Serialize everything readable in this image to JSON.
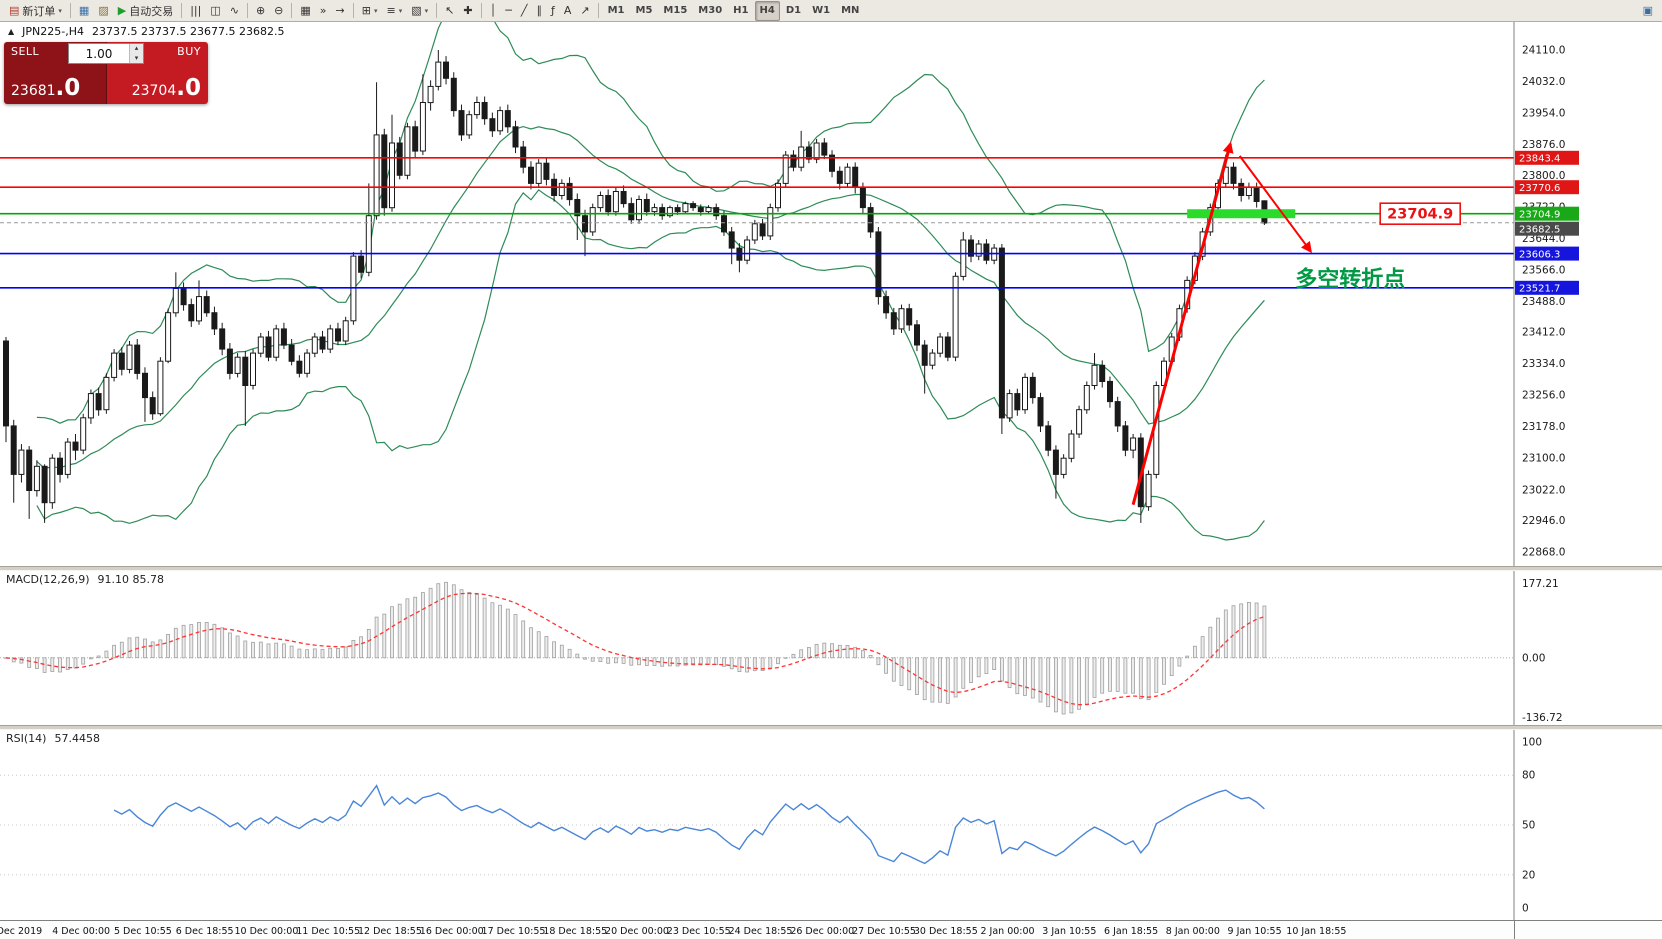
{
  "colors": {
    "sell_bg": "#8e1318",
    "buy_bg": "#c41a22",
    "resistance_red": "#ff0000",
    "support_blue": "#0000ff",
    "pivot_green": "#00a800",
    "highlight_green": "#2bdb2b",
    "annotation_red": "#ff0000",
    "bollinger_green": "#2e8b57",
    "rsi_blue": "#4a86d8",
    "macd_signal_red": "#ff3333"
  },
  "toolbar": {
    "items": [
      {
        "name": "new-order-button",
        "icon": "▤",
        "icon_color": "#b23b2e",
        "label": "新订单",
        "caret": "▾"
      },
      {
        "sep": true
      },
      {
        "name": "chart-window-icon",
        "icon": "▦",
        "icon_color": "#3a6ea5"
      },
      {
        "name": "profiles-icon",
        "icon": "▨",
        "icon_color": "#8a6d3b"
      },
      {
        "name": "autotrading-button",
        "icon": "▶",
        "icon_color": "#1f9d2f",
        "label": "自动交易"
      },
      {
        "sep": true
      },
      {
        "name": "bar-chart-icon",
        "icon": "|||"
      },
      {
        "name": "candlestick-chart-icon",
        "icon": "◫"
      },
      {
        "name": "line-chart-icon",
        "icon": "∿"
      },
      {
        "sep": true
      },
      {
        "name": "zoom-in-icon",
        "icon": "⊕"
      },
      {
        "name": "zoom-out-icon",
        "icon": "⊖"
      },
      {
        "sep": true
      },
      {
        "name": "tile-windows-icon",
        "icon": "▦"
      },
      {
        "name": "auto-scroll-icon",
        "icon": "»"
      },
      {
        "name": "chart-shift-icon",
        "icon": "→"
      },
      {
        "sep": true
      },
      {
        "name": "indicators-icon",
        "icon": "⊞",
        "caret": "▾"
      },
      {
        "name": "periods-icon",
        "icon": "≡",
        "caret": "▾"
      },
      {
        "name": "templates-icon",
        "icon": "▧",
        "caret": "▾"
      },
      {
        "sep": true
      },
      {
        "name": "cursor-icon",
        "icon": "↖"
      },
      {
        "name": "crosshair-icon",
        "icon": "✚"
      },
      {
        "sep": true
      },
      {
        "name": "vertical-line-icon",
        "icon": "│"
      },
      {
        "name": "horizontal-line-icon",
        "icon": "─"
      },
      {
        "name": "trendline-icon",
        "icon": "╱"
      },
      {
        "name": "channel-icon",
        "icon": "∥"
      },
      {
        "name": "fibonacci-icon",
        "icon": "ƒ"
      },
      {
        "name": "text-icon",
        "icon": "A"
      },
      {
        "name": "arrow-tool-icon",
        "icon": "↗"
      },
      {
        "sep": true
      }
    ],
    "timeframes": [
      "M1",
      "M5",
      "M15",
      "M30",
      "H1",
      "H4",
      "D1",
      "W1",
      "MN"
    ],
    "active_timeframe": "H4",
    "right_items": [
      {
        "name": "new-chart-icon",
        "icon": "▣",
        "icon_color": "#3a6ea5"
      }
    ]
  },
  "chart_header": {
    "marker": "▲",
    "symbol_period": "JPN225-,H4",
    "ohlc": "23737.5 23737.5 23677.5 23682.5"
  },
  "order_widget": {
    "sell_label": "SELL",
    "buy_label": "BUY",
    "volume": "1.00",
    "volume_up_icon": "▴",
    "volume_down_icon": "▾",
    "sell_price_main": "23681",
    "sell_price_pips": ".0",
    "buy_price_main": "23704",
    "buy_price_pips": ".0"
  },
  "chart_data": {
    "type": "candlestick",
    "symbol": "JPN225-",
    "timeframe": "H4",
    "price_axis": {
      "max": 24110.0,
      "min": 22868.0,
      "labels": [
        "24110.0",
        "24032.0",
        "23954.0",
        "23876.0",
        "23800.0",
        "23722.0",
        "23644.0",
        "23566.0",
        "23488.0",
        "23412.0",
        "23334.0",
        "23256.0",
        "23178.0",
        "23100.0",
        "23022.0",
        "22946.0",
        "22868.0"
      ]
    },
    "time_axis": [
      "Dec 2019",
      "4 Dec 00:00",
      "5 Dec 10:55",
      "6 Dec 18:55",
      "10 Dec 00:00",
      "11 Dec 10:55",
      "12 Dec 18:55",
      "16 Dec 00:00",
      "17 Dec 10:55",
      "18 Dec 18:55",
      "20 Dec 00:00",
      "23 Dec 10:55",
      "24 Dec 18:55",
      "26 Dec 00:00",
      "27 Dec 10:55",
      "30 Dec 18:55",
      "2 Jan 00:00",
      "3 Jan 10:55",
      "6 Jan 18:55",
      "8 Jan 00:00",
      "9 Jan 10:55",
      "10 Jan 18:55"
    ],
    "bollinger": {
      "period": 20,
      "deviation": 2,
      "color": "#2e8b57"
    },
    "hlines": [
      {
        "price": 23843.4,
        "color": "#ff0000",
        "tag": "23843.4",
        "tag_bg": "#e01515"
      },
      {
        "price": 23770.6,
        "color": "#ff0000",
        "tag": "23770.6",
        "tag_bg": "#e01515"
      },
      {
        "price": 23704.9,
        "color": "#00a800",
        "tag": "23704.9",
        "tag_bg": "#18a818"
      },
      {
        "price": 23606.3,
        "color": "#0000ff",
        "tag": "23606.3",
        "tag_bg": "#1515dd"
      },
      {
        "price": 23521.7,
        "color": "#0000ff",
        "tag": "23521.7",
        "tag_bg": "#1515dd"
      }
    ],
    "bid_line": {
      "price": 23682.5,
      "tag": "23682.5",
      "color": "#999999",
      "tag_bg": "#4a4a4a"
    },
    "annotations": {
      "highlight_bar": {
        "price": 23704.9,
        "bar_start": 153,
        "bar_end": 167,
        "color": "#2bdb2b",
        "width": 9
      },
      "arrow_up": {
        "from_bar": 146,
        "from_price": 22985,
        "to_bar": 158.6,
        "to_price": 23878,
        "color": "#ff0000",
        "width": 3
      },
      "arrow_down": {
        "from_bar": 159.8,
        "from_price": 23848,
        "to_bar": 169,
        "to_price": 23612,
        "color": "#ff0000",
        "width": 2
      },
      "price_callout": {
        "text": "23704.9",
        "bar": 178,
        "price": 23704.9,
        "color": "#ee1111"
      },
      "text_label": {
        "text": "多空转折点",
        "bar": 167,
        "price": 23545,
        "color": "#009944"
      }
    },
    "candles": [
      [
        23390,
        23400,
        23140,
        23180
      ],
      [
        23180,
        23195,
        22990,
        23060
      ],
      [
        23060,
        23135,
        23040,
        23120
      ],
      [
        23120,
        23130,
        22950,
        23020
      ],
      [
        23020,
        23095,
        23005,
        23080
      ],
      [
        23080,
        23085,
        22940,
        22990
      ],
      [
        22990,
        23110,
        22975,
        23100
      ],
      [
        23100,
        23115,
        23040,
        23060
      ],
      [
        23060,
        23150,
        23050,
        23140
      ],
      [
        23140,
        23160,
        23095,
        23120
      ],
      [
        23120,
        23210,
        23110,
        23200
      ],
      [
        23200,
        23270,
        23185,
        23260
      ],
      [
        23260,
        23275,
        23205,
        23220
      ],
      [
        23220,
        23310,
        23210,
        23300
      ],
      [
        23300,
        23370,
        23290,
        23360
      ],
      [
        23360,
        23375,
        23305,
        23320
      ],
      [
        23320,
        23390,
        23310,
        23380
      ],
      [
        23380,
        23395,
        23295,
        23310
      ],
      [
        23310,
        23325,
        23190,
        23250
      ],
      [
        23250,
        23265,
        23195,
        23210
      ],
      [
        23210,
        23350,
        23205,
        23340
      ],
      [
        23340,
        23470,
        23335,
        23460
      ],
      [
        23460,
        23560,
        23450,
        23520
      ],
      [
        23520,
        23535,
        23465,
        23480
      ],
      [
        23480,
        23495,
        23425,
        23440
      ],
      [
        23440,
        23540,
        23430,
        23500
      ],
      [
        23500,
        23515,
        23450,
        23460
      ],
      [
        23460,
        23475,
        23405,
        23420
      ],
      [
        23420,
        23435,
        23355,
        23370
      ],
      [
        23370,
        23385,
        23295,
        23310
      ],
      [
        23310,
        23360,
        23300,
        23350
      ],
      [
        23350,
        23365,
        23180,
        23280
      ],
      [
        23280,
        23370,
        23270,
        23360
      ],
      [
        23360,
        23410,
        23350,
        23400
      ],
      [
        23400,
        23415,
        23340,
        23350
      ],
      [
        23350,
        23430,
        23340,
        23420
      ],
      [
        23420,
        23435,
        23370,
        23380
      ],
      [
        23380,
        23395,
        23330,
        23340
      ],
      [
        23340,
        23355,
        23300,
        23310
      ],
      [
        23310,
        23370,
        23300,
        23360
      ],
      [
        23360,
        23410,
        23350,
        23400
      ],
      [
        23400,
        23415,
        23360,
        23370
      ],
      [
        23370,
        23430,
        23360,
        23420
      ],
      [
        23420,
        23435,
        23380,
        23390
      ],
      [
        23390,
        23450,
        23380,
        23440
      ],
      [
        23440,
        23610,
        23430,
        23600
      ],
      [
        23600,
        23615,
        23545,
        23560
      ],
      [
        23560,
        23780,
        23550,
        23700
      ],
      [
        23700,
        24030,
        23690,
        23900
      ],
      [
        23900,
        23915,
        23700,
        23720
      ],
      [
        23720,
        23950,
        23710,
        23880
      ],
      [
        23880,
        23895,
        23790,
        23800
      ],
      [
        23800,
        23930,
        23790,
        23920
      ],
      [
        23920,
        23935,
        23845,
        23860
      ],
      [
        23860,
        24050,
        23850,
        23980
      ],
      [
        23980,
        24035,
        23960,
        24020
      ],
      [
        24020,
        24110,
        24010,
        24080
      ],
      [
        24080,
        24095,
        24025,
        24040
      ],
      [
        24040,
        24055,
        23945,
        23960
      ],
      [
        23960,
        23975,
        23885,
        23900
      ],
      [
        23900,
        23960,
        23890,
        23950
      ],
      [
        23950,
        23995,
        23940,
        23980
      ],
      [
        23980,
        23995,
        23925,
        23940
      ],
      [
        23940,
        23955,
        23895,
        23910
      ],
      [
        23910,
        23970,
        23900,
        23960
      ],
      [
        23960,
        23975,
        23905,
        23920
      ],
      [
        23920,
        23935,
        23855,
        23870
      ],
      [
        23870,
        23885,
        23805,
        23820
      ],
      [
        23820,
        23835,
        23765,
        23780
      ],
      [
        23780,
        23840,
        23770,
        23830
      ],
      [
        23830,
        23845,
        23775,
        23790
      ],
      [
        23790,
        23805,
        23735,
        23750
      ],
      [
        23750,
        23790,
        23740,
        23780
      ],
      [
        23780,
        23795,
        23725,
        23740
      ],
      [
        23740,
        23755,
        23640,
        23700
      ],
      [
        23700,
        23715,
        23600,
        23660
      ],
      [
        23660,
        23730,
        23650,
        23720
      ],
      [
        23720,
        23760,
        23710,
        23750
      ],
      [
        23750,
        23765,
        23700,
        23710
      ],
      [
        23710,
        23770,
        23700,
        23760
      ],
      [
        23760,
        23775,
        23720,
        23730
      ],
      [
        23730,
        23745,
        23680,
        23690
      ],
      [
        23690,
        23750,
        23680,
        23740
      ],
      [
        23740,
        23755,
        23700,
        23710
      ],
      [
        23710,
        23730,
        23700,
        23720
      ],
      [
        23720,
        23730,
        23690,
        23700
      ],
      [
        23700,
        23725,
        23695,
        23720
      ],
      [
        23720,
        23728,
        23702,
        23710
      ],
      [
        23710,
        23735,
        23705,
        23730
      ],
      [
        23730,
        23736,
        23712,
        23720
      ],
      [
        23720,
        23728,
        23700,
        23710
      ],
      [
        23710,
        23726,
        23704,
        23720
      ],
      [
        23720,
        23730,
        23690,
        23700
      ],
      [
        23700,
        23712,
        23650,
        23660
      ],
      [
        23660,
        23672,
        23580,
        23620
      ],
      [
        23620,
        23632,
        23560,
        23590
      ],
      [
        23590,
        23650,
        23580,
        23640
      ],
      [
        23640,
        23690,
        23630,
        23680
      ],
      [
        23680,
        23692,
        23640,
        23650
      ],
      [
        23650,
        23730,
        23640,
        23720
      ],
      [
        23720,
        23790,
        23710,
        23780
      ],
      [
        23780,
        23860,
        23770,
        23850
      ],
      [
        23850,
        23862,
        23810,
        23820
      ],
      [
        23820,
        23910,
        23810,
        23870
      ],
      [
        23870,
        23884,
        23830,
        23840
      ],
      [
        23840,
        23890,
        23830,
        23880
      ],
      [
        23880,
        23892,
        23840,
        23850
      ],
      [
        23850,
        23862,
        23795,
        23810
      ],
      [
        23810,
        23822,
        23765,
        23780
      ],
      [
        23780,
        23830,
        23770,
        23820
      ],
      [
        23820,
        23832,
        23755,
        23770
      ],
      [
        23770,
        23782,
        23705,
        23720
      ],
      [
        23720,
        23732,
        23645,
        23660
      ],
      [
        23660,
        23672,
        23480,
        23500
      ],
      [
        23500,
        23515,
        23445,
        23460
      ],
      [
        23460,
        23472,
        23405,
        23420
      ],
      [
        23420,
        23480,
        23410,
        23470
      ],
      [
        23470,
        23482,
        23415,
        23430
      ],
      [
        23430,
        23442,
        23365,
        23380
      ],
      [
        23380,
        23392,
        23260,
        23330
      ],
      [
        23330,
        23370,
        23320,
        23360
      ],
      [
        23360,
        23410,
        23350,
        23400
      ],
      [
        23400,
        23412,
        23340,
        23350
      ],
      [
        23350,
        23560,
        23340,
        23550
      ],
      [
        23550,
        23660,
        23540,
        23640
      ],
      [
        23640,
        23652,
        23585,
        23600
      ],
      [
        23600,
        23640,
        23590,
        23630
      ],
      [
        23630,
        23642,
        23580,
        23590
      ],
      [
        23590,
        23630,
        23580,
        23620
      ],
      [
        23620,
        23630,
        23160,
        23200
      ],
      [
        23200,
        23270,
        23190,
        23260
      ],
      [
        23260,
        23272,
        23205,
        23220
      ],
      [
        23220,
        23310,
        23210,
        23300
      ],
      [
        23300,
        23312,
        23235,
        23250
      ],
      [
        23250,
        23262,
        23165,
        23180
      ],
      [
        23180,
        23192,
        23105,
        23120
      ],
      [
        23120,
        23132,
        23000,
        23060
      ],
      [
        23060,
        23110,
        23050,
        23100
      ],
      [
        23100,
        23170,
        23090,
        23160
      ],
      [
        23160,
        23230,
        23150,
        23220
      ],
      [
        23220,
        23290,
        23210,
        23280
      ],
      [
        23280,
        23360,
        23270,
        23330
      ],
      [
        23330,
        23342,
        23275,
        23290
      ],
      [
        23290,
        23302,
        23225,
        23240
      ],
      [
        23240,
        23252,
        23165,
        23180
      ],
      [
        23180,
        23192,
        23105,
        23120
      ],
      [
        23120,
        23160,
        23100,
        23150
      ],
      [
        23150,
        23162,
        22940,
        22980
      ],
      [
        22980,
        23070,
        22970,
        23060
      ],
      [
        23060,
        23290,
        23050,
        23280
      ],
      [
        23280,
        23350,
        23270,
        23340
      ],
      [
        23340,
        23410,
        23330,
        23400
      ],
      [
        23400,
        23480,
        23390,
        23470
      ],
      [
        23470,
        23550,
        23460,
        23540
      ],
      [
        23540,
        23610,
        23530,
        23600
      ],
      [
        23600,
        23670,
        23590,
        23660
      ],
      [
        23660,
        23730,
        23650,
        23720
      ],
      [
        23720,
        23790,
        23710,
        23780
      ],
      [
        23780,
        23850,
        23770,
        23820
      ],
      [
        23820,
        23832,
        23765,
        23780
      ],
      [
        23780,
        23792,
        23735,
        23750
      ],
      [
        23750,
        23782,
        23740,
        23770
      ],
      [
        23770,
        23782,
        23720,
        23735
      ],
      [
        23737,
        23738,
        23677,
        23682
      ]
    ],
    "macd": {
      "label": "MACD(12,26,9)",
      "values_text": "91.10 85.78",
      "fast": 12,
      "slow": 26,
      "signal": 9,
      "axis_max": 177.21,
      "axis_min": -136.72,
      "axis_labels": [
        "177.21",
        "0.00",
        "-136.72"
      ],
      "histogram_color": "#ececec",
      "signal_color": "#ff3333"
    },
    "rsi": {
      "label": "RSI(14)",
      "value_text": "57.4458",
      "period": 14,
      "line_color": "#4a86d8",
      "levels": [
        80,
        50,
        20
      ],
      "axis_labels": [
        "100",
        "80",
        "50",
        "20",
        "0"
      ]
    }
  }
}
